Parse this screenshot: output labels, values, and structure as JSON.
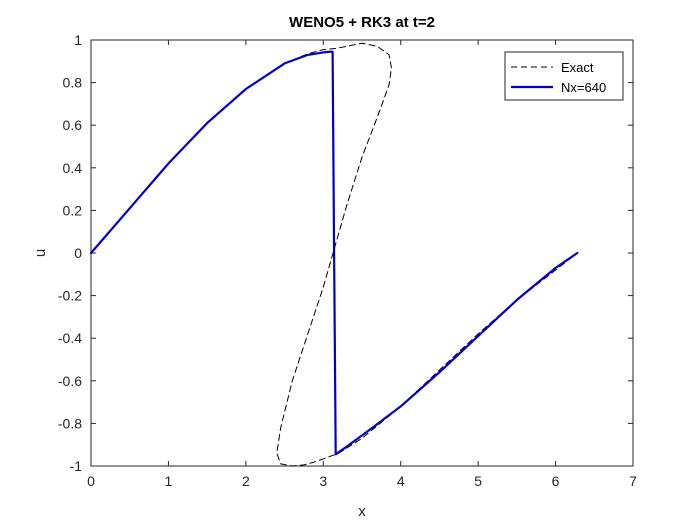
{
  "chart_data": {
    "type": "line",
    "title": "WENO5 + RK3 at t=2",
    "xlabel": "x",
    "ylabel": "u",
    "xlim": [
      0,
      7
    ],
    "ylim": [
      -1,
      1
    ],
    "x_ticks": [
      "0",
      "1",
      "2",
      "3",
      "4",
      "5",
      "6",
      "7"
    ],
    "y_ticks": [
      "-1",
      "-0.8",
      "-0.6",
      "-0.4",
      "-0.2",
      "0",
      "0.2",
      "0.4",
      "0.6",
      "0.8",
      "1"
    ],
    "grid": false,
    "legend_position": "top-right",
    "series": [
      {
        "name": "Exact",
        "style": "dashed",
        "color": "#000000",
        "x": [
          0,
          0.5,
          1.0,
          1.5,
          2.0,
          2.5,
          2.8,
          3.0,
          3.15,
          3.3,
          3.5,
          3.7,
          3.85,
          3.88,
          3.85,
          3.7,
          3.5,
          3.3,
          3.15,
          3.0,
          2.8,
          2.6,
          2.45,
          2.4,
          2.45,
          2.6,
          2.75,
          2.9,
          3.2,
          3.5,
          4.0,
          4.5,
          5.0,
          5.5,
          6.0,
          6.28
        ],
        "y": [
          0,
          0.21,
          0.42,
          0.61,
          0.77,
          0.89,
          0.935,
          0.955,
          0.96,
          0.97,
          0.985,
          0.97,
          0.93,
          0.87,
          0.79,
          0.64,
          0.45,
          0.22,
          0.03,
          -0.16,
          -0.38,
          -0.6,
          -0.82,
          -0.94,
          -0.99,
          -1.0,
          -0.995,
          -0.98,
          -0.94,
          -0.87,
          -0.72,
          -0.55,
          -0.38,
          -0.22,
          -0.08,
          0
        ]
      },
      {
        "name": "Nx=640",
        "style": "solid",
        "color": "#0000cc",
        "x": [
          0,
          0.5,
          1.0,
          1.5,
          2.0,
          2.5,
          2.8,
          3.0,
          3.1,
          3.12,
          3.14,
          3.16,
          3.3,
          3.6,
          4.0,
          4.5,
          5.0,
          5.5,
          6.0,
          6.28
        ],
        "y": [
          0,
          0.21,
          0.42,
          0.61,
          0.77,
          0.89,
          0.93,
          0.942,
          0.945,
          0.945,
          0.0,
          -0.945,
          -0.91,
          -0.83,
          -0.72,
          -0.56,
          -0.39,
          -0.22,
          -0.07,
          0
        ]
      }
    ]
  }
}
